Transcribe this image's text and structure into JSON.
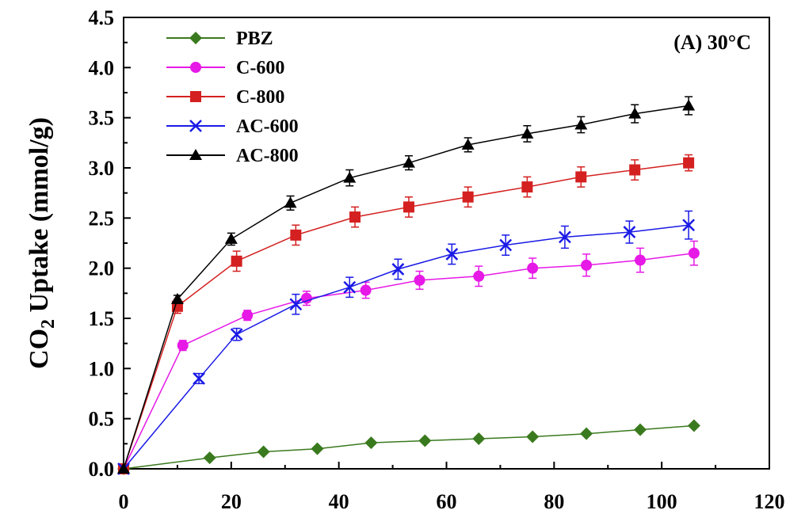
{
  "chart_data": {
    "type": "line",
    "annotation": "(A) 30°C",
    "ylabel_main": "CO",
    "ylabel_sub": "2",
    "ylabel_rest": " Uptake (mmol/g)",
    "xlabel": "",
    "xlim": [
      0,
      120
    ],
    "ylim": [
      0,
      4.5
    ],
    "xticks": [
      "0",
      "20",
      "40",
      "60",
      "80",
      "100",
      "120"
    ],
    "xtick_values": [
      0,
      20,
      40,
      60,
      80,
      100,
      120
    ],
    "yticks": [
      "0.0",
      "0.5",
      "1.0",
      "1.5",
      "2.0",
      "2.5",
      "3.0",
      "3.5",
      "4.0",
      "4.5"
    ],
    "ytick_values": [
      0,
      0.5,
      1.0,
      1.5,
      2.0,
      2.5,
      3.0,
      3.5,
      4.0,
      4.5
    ],
    "grid": false,
    "legend_position": "top-left",
    "series": [
      {
        "name": "PBZ",
        "color": "#3a7a1e",
        "marker": "diamond",
        "x": [
          0,
          16,
          26,
          36,
          46,
          56,
          66,
          76,
          86,
          96,
          106
        ],
        "y": [
          0,
          0.11,
          0.17,
          0.2,
          0.26,
          0.28,
          0.3,
          0.32,
          0.35,
          0.39,
          0.43
        ],
        "err": null
      },
      {
        "name": "C-600",
        "color": "#e619e6",
        "marker": "circle",
        "x": [
          0,
          11,
          23,
          34,
          45,
          55,
          66,
          76,
          86,
          96,
          106
        ],
        "y": [
          0,
          1.23,
          1.53,
          1.7,
          1.78,
          1.88,
          1.92,
          2.0,
          2.03,
          2.08,
          2.15
        ],
        "err": [
          0,
          0.05,
          0.05,
          0.07,
          0.08,
          0.09,
          0.1,
          0.1,
          0.11,
          0.12,
          0.12
        ]
      },
      {
        "name": "C-800",
        "color": "#d42020",
        "marker": "square",
        "x": [
          0,
          10,
          21,
          32,
          43,
          53,
          64,
          75,
          85,
          95,
          105
        ],
        "y": [
          0,
          1.62,
          2.07,
          2.33,
          2.51,
          2.61,
          2.71,
          2.81,
          2.91,
          2.98,
          3.05
        ],
        "err": [
          0,
          0.07,
          0.1,
          0.1,
          0.1,
          0.1,
          0.1,
          0.1,
          0.1,
          0.1,
          0.08
        ]
      },
      {
        "name": "AC-600",
        "color": "#1a1ae6",
        "marker": "x",
        "x": [
          0,
          14,
          21,
          32,
          42,
          51,
          61,
          71,
          82,
          94,
          105
        ],
        "y": [
          0,
          0.9,
          1.34,
          1.64,
          1.81,
          1.99,
          2.14,
          2.23,
          2.31,
          2.36,
          2.43
        ],
        "err": [
          0,
          0.05,
          0.06,
          0.1,
          0.1,
          0.1,
          0.1,
          0.1,
          0.11,
          0.11,
          0.14
        ]
      },
      {
        "name": "AC-800",
        "color": "#000000",
        "marker": "triangle",
        "x": [
          0,
          10,
          20,
          31,
          42,
          53,
          64,
          75,
          85,
          95,
          105
        ],
        "y": [
          0,
          1.69,
          2.29,
          2.65,
          2.9,
          3.05,
          3.23,
          3.34,
          3.43,
          3.54,
          3.62
        ],
        "err": [
          0,
          0.04,
          0.06,
          0.07,
          0.08,
          0.07,
          0.07,
          0.08,
          0.08,
          0.09,
          0.09
        ]
      }
    ]
  }
}
